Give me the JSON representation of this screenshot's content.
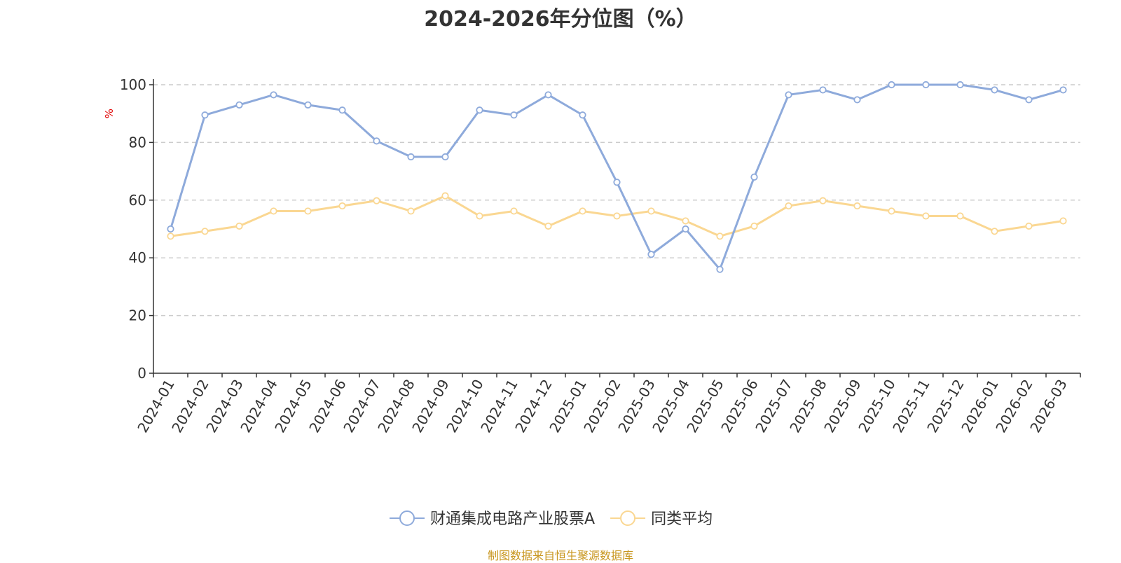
{
  "colors": {
    "series_a": "#8eaadb",
    "series_b": "#fad792",
    "unit": "#e00000",
    "source": "#c8961e",
    "grid": "#cccccc",
    "axis": "#333333"
  },
  "chart_data": {
    "type": "line",
    "title": "2024-2026年分位图（%）",
    "ylabel": "%",
    "ylim": [
      0,
      100
    ],
    "yticks": [
      0,
      20,
      40,
      60,
      80,
      100
    ],
    "grid": "horizontal-dashed",
    "legend_position": "bottom-center",
    "x": [
      "2024-01",
      "2024-02",
      "2024-03",
      "2024-04",
      "2024-05",
      "2024-06",
      "2024-07",
      "2024-08",
      "2024-09",
      "2024-10",
      "2024-11",
      "2024-12",
      "2025-01",
      "2025-02",
      "2025-03",
      "2025-04",
      "2025-05",
      "2025-06",
      "2025-07",
      "2025-08",
      "2025-09",
      "2025-10",
      "2025-11",
      "2025-12",
      "2026-01",
      "2026-02",
      "2026-03"
    ],
    "series": [
      {
        "name": "财通集成电路产业股票A",
        "values": [
          50,
          89.5,
          93,
          96.5,
          93,
          91.2,
          80.5,
          75,
          75,
          91.2,
          89.5,
          96.5,
          89.5,
          66.2,
          41.2,
          50,
          36,
          68,
          96.5,
          98.2,
          94.8,
          100,
          100,
          100,
          98.2,
          94.8,
          98.2
        ]
      },
      {
        "name": "同类平均",
        "values": [
          47.5,
          49.2,
          51,
          56.2,
          56.2,
          58,
          59.8,
          56.2,
          61.5,
          54.5,
          56.2,
          51,
          56.2,
          54.5,
          56.2,
          52.8,
          47.5,
          51,
          58,
          59.8,
          58,
          56.2,
          54.5,
          54.5,
          49.2,
          51,
          52.8
        ]
      }
    ]
  },
  "source_note": "制图数据来自恒生聚源数据库"
}
